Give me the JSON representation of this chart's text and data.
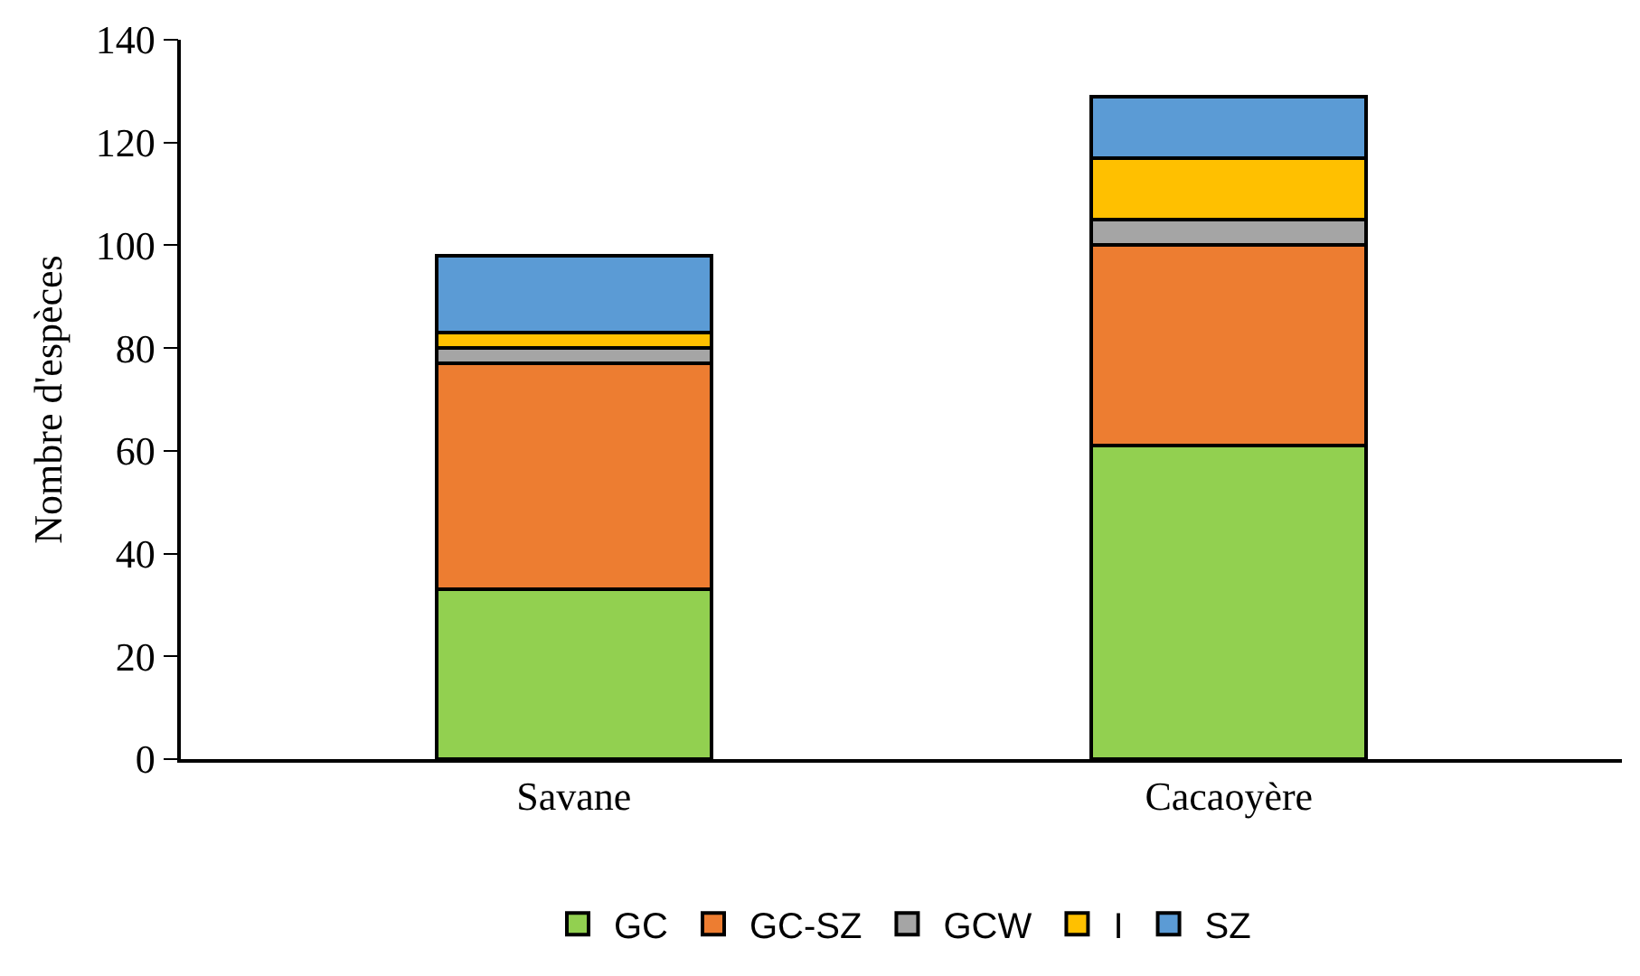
{
  "chart_data": {
    "type": "bar",
    "stacked": true,
    "ylabel": "Nombre d'espèces",
    "categories": [
      "Savane",
      "Cacaoyère"
    ],
    "series": [
      {
        "name": "GC",
        "color": "#92d050",
        "values": [
          33,
          61
        ]
      },
      {
        "name": "GC-SZ",
        "color": "#ed7d31",
        "values": [
          44,
          39
        ]
      },
      {
        "name": "GCW",
        "color": "#a5a5a5",
        "values": [
          3,
          5
        ]
      },
      {
        "name": "I",
        "color": "#ffc000",
        "values": [
          3,
          12
        ]
      },
      {
        "name": "SZ",
        "color": "#5b9bd5",
        "values": [
          15,
          12
        ]
      }
    ],
    "ylim": [
      0,
      140
    ],
    "yticks": [
      0,
      20,
      40,
      60,
      80,
      100,
      120,
      140
    ],
    "legend": "bottom"
  }
}
